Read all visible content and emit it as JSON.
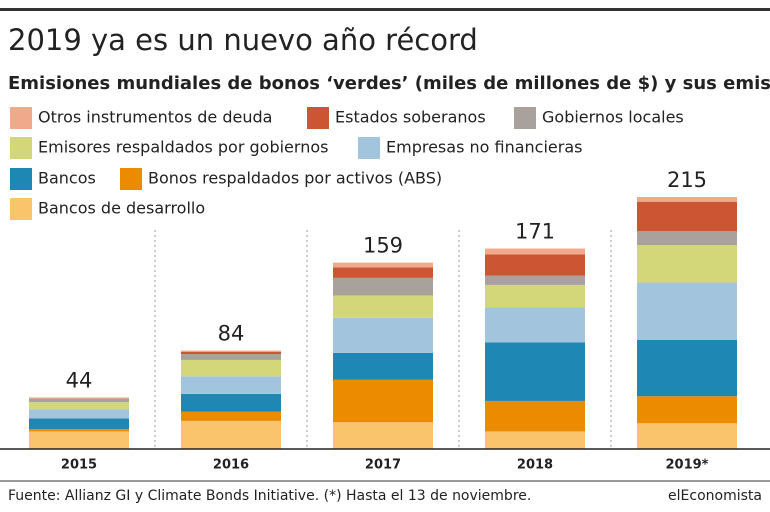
{
  "chart_data": {
    "type": "stacked_bar",
    "title": "2019 ya es un nuevo año récord",
    "subtitle": "Emisiones mundiales de bonos ‘verdes’ (miles de millones de $) y sus emisores",
    "categories": [
      "2015",
      "2016",
      "2017",
      "2018",
      "2019*"
    ],
    "series": [
      {
        "name": "Bancos de desarrollo",
        "color": "#f9c46b",
        "values": [
          15,
          24,
          23,
          15,
          22
        ]
      },
      {
        "name": "Bonos respaldados por activos (ABS)",
        "color": "#ec8a00",
        "values": [
          2,
          8,
          36,
          26,
          23
        ]
      },
      {
        "name": "Bancos",
        "color": "#1f87b3",
        "values": [
          9,
          15,
          23,
          50,
          48
        ]
      },
      {
        "name": "Empresas no financieras",
        "color": "#a3c4dd",
        "values": [
          8,
          15,
          30,
          30,
          49
        ]
      },
      {
        "name": "Emisores respaldados por gobiernos",
        "color": "#d4d67a",
        "values": [
          6,
          14,
          19,
          19,
          32
        ]
      },
      {
        "name": "Gobiernos locales",
        "color": "#a8a19c",
        "values": [
          3,
          5,
          15,
          8,
          12
        ]
      },
      {
        "name": "Estados soberanos",
        "color": "#cc5533",
        "values": [
          0,
          2,
          9,
          18,
          25
        ]
      },
      {
        "name": "Otros instrumentos de deuda",
        "color": "#f0a98a",
        "values": [
          1,
          1,
          4,
          5,
          4
        ]
      }
    ],
    "totals": [
      44,
      84,
      159,
      171,
      215
    ],
    "source": "Fuente: Allianz GI y Climate Bonds Initiative. (*) Hasta el 13 de noviembre.",
    "brand": "elEconomista"
  }
}
